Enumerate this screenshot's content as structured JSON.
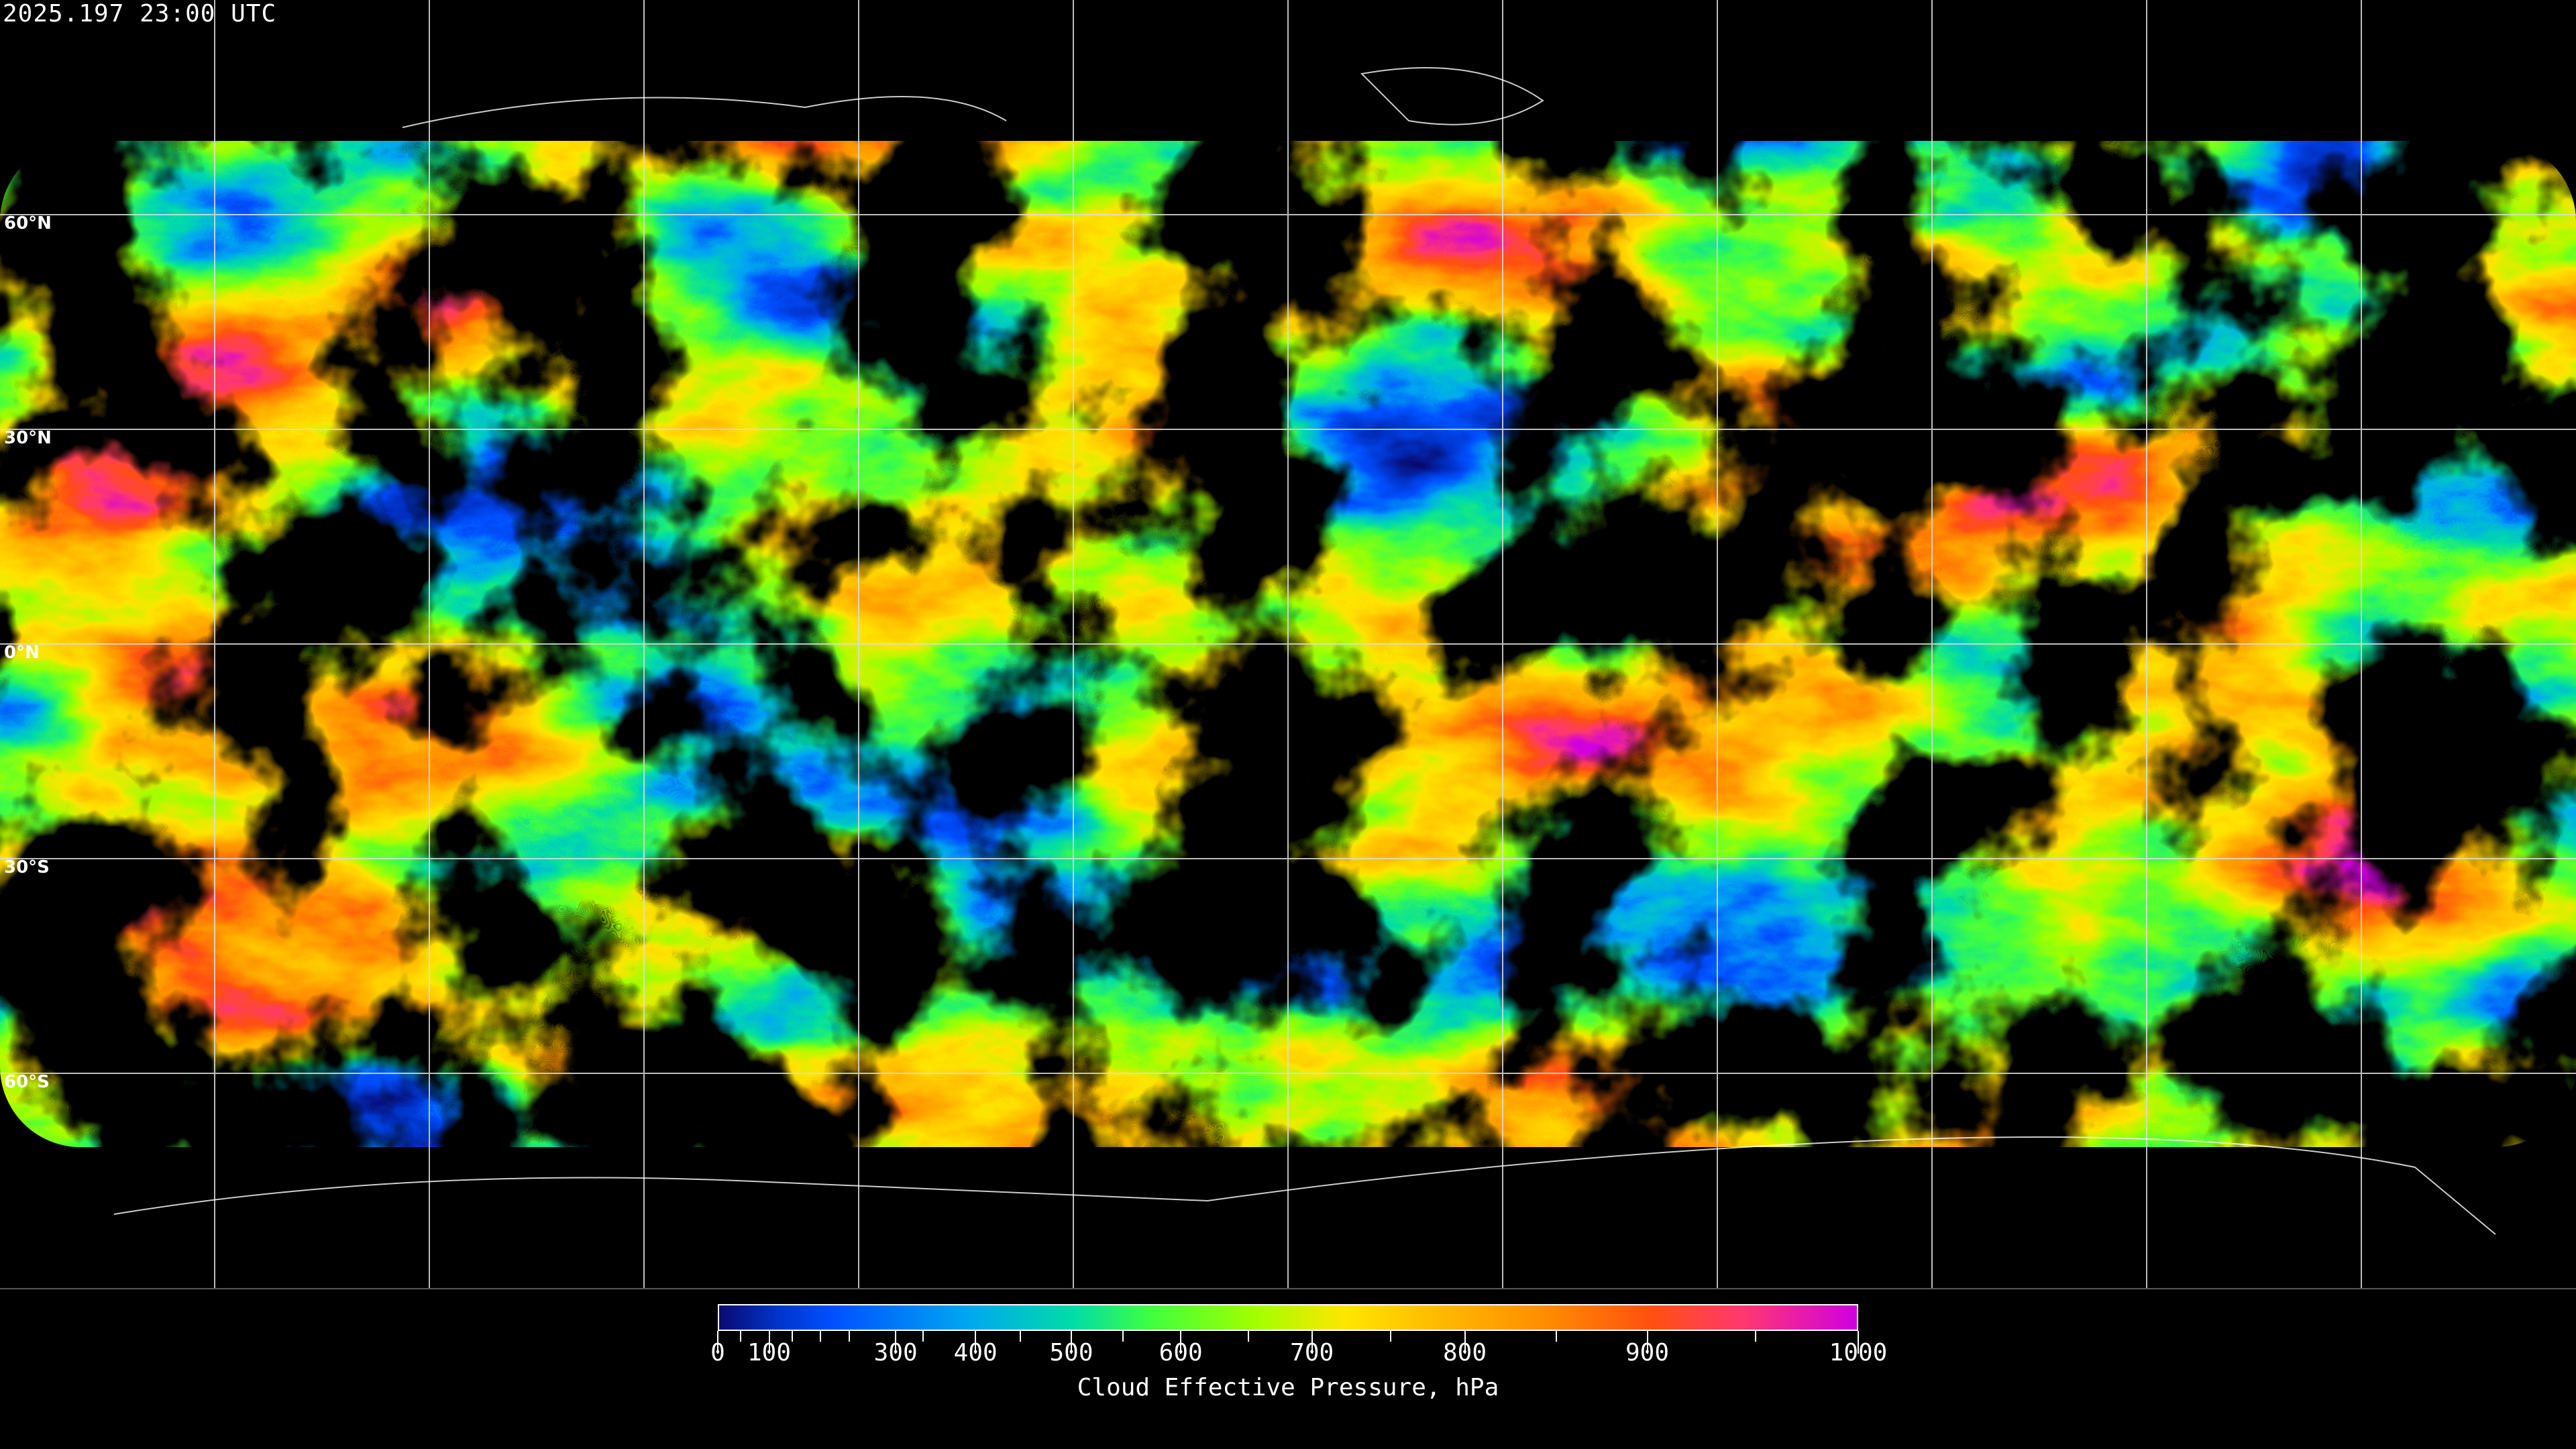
{
  "title": "2025.197 23:00 UTC",
  "latitude_labels": [
    "60°N",
    "30°N",
    "0°N",
    "30°S",
    "60°S"
  ],
  "colorbar": {
    "label": "Cloud Effective Pressure, hPa",
    "tick_labels": [
      "0",
      "100",
      "300",
      "400",
      "500",
      "600",
      "700",
      "800",
      "900",
      "1000"
    ],
    "range": [
      0,
      1000
    ],
    "colors": [
      "#0a0a6e",
      "#0033c8",
      "#0050ff",
      "#00a8f0",
      "#00dca8",
      "#40ff40",
      "#a0ff00",
      "#ffe600",
      "#ffc000",
      "#ff9000",
      "#ff5010",
      "#ff3870",
      "#d000e0"
    ]
  },
  "map": {
    "projection": "equirectangular",
    "graticule_spacing_deg": 30,
    "no_data_color": "#000000",
    "coastline_color": "#ffffff"
  }
}
